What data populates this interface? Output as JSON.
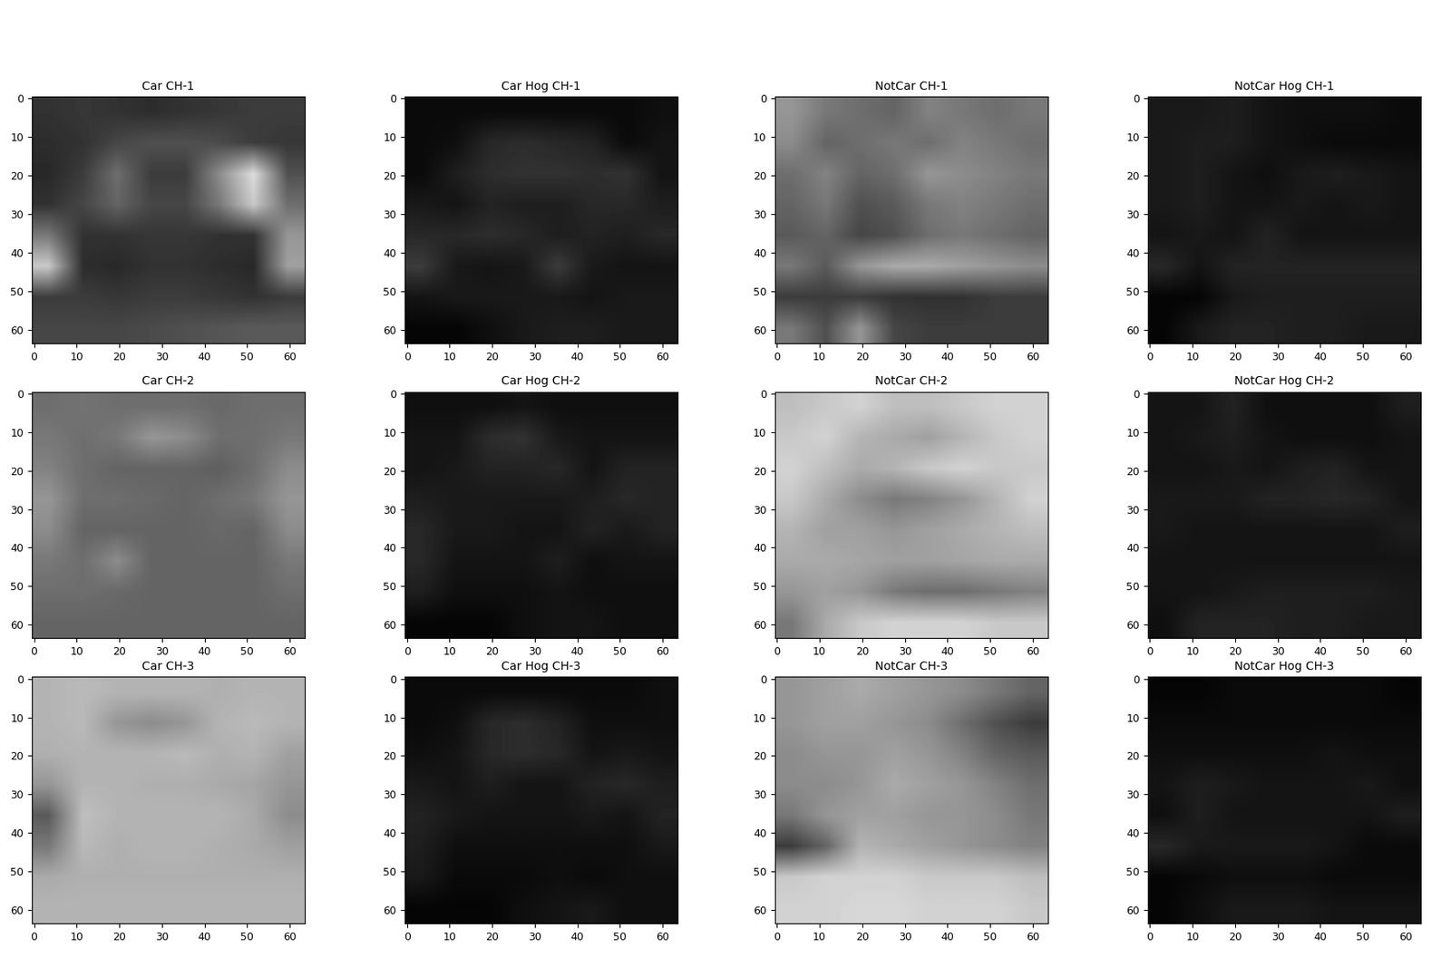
{
  "chart_data": [
    {
      "type": "image",
      "title": "Car CH-1",
      "xlim": [
        -0.5,
        63.5
      ],
      "ylim": [
        63.5,
        -0.5
      ],
      "xticks": [
        0,
        10,
        20,
        30,
        40,
        50,
        60
      ],
      "yticks": [
        0,
        10,
        20,
        30,
        40,
        50,
        60
      ],
      "color_range": [
        0,
        255
      ],
      "cells": [
        [
          50,
          55,
          50,
          45,
          50,
          55,
          60,
          60
        ],
        [
          45,
          50,
          70,
          80,
          80,
          75,
          60,
          55
        ],
        [
          40,
          60,
          110,
          60,
          60,
          140,
          220,
          80
        ],
        [
          50,
          70,
          100,
          70,
          70,
          120,
          200,
          110
        ],
        [
          120,
          50,
          50,
          55,
          55,
          50,
          50,
          150
        ],
        [
          200,
          45,
          40,
          50,
          50,
          45,
          40,
          160
        ],
        [
          60,
          60,
          55,
          60,
          60,
          55,
          50,
          60
        ],
        [
          70,
          70,
          70,
          75,
          80,
          85,
          90,
          90
        ]
      ]
    },
    {
      "type": "image",
      "title": "Car Hog CH-1",
      "xlim": [
        -0.5,
        63.5
      ],
      "ylim": [
        63.5,
        -0.5
      ],
      "xticks": [
        0,
        10,
        20,
        30,
        40,
        50,
        60
      ],
      "yticks": [
        0,
        10,
        20,
        30,
        40,
        50,
        60
      ],
      "color_range": [
        0,
        255
      ],
      "cells": [
        [
          10,
          10,
          10,
          10,
          10,
          10,
          10,
          15
        ],
        [
          10,
          15,
          40,
          45,
          40,
          35,
          10,
          20
        ],
        [
          10,
          30,
          45,
          50,
          50,
          45,
          50,
          20
        ],
        [
          25,
          20,
          35,
          30,
          30,
          40,
          40,
          30
        ],
        [
          40,
          40,
          45,
          40,
          30,
          35,
          30,
          40
        ],
        [
          60,
          25,
          20,
          25,
          60,
          25,
          20,
          20
        ],
        [
          20,
          25,
          25,
          25,
          25,
          20,
          25,
          25
        ],
        [
          5,
          5,
          15,
          25,
          30,
          30,
          25,
          25
        ]
      ]
    },
    {
      "type": "image",
      "title": "NotCar CH-1",
      "xlim": [
        -0.5,
        63.5
      ],
      "ylim": [
        63.5,
        -0.5
      ],
      "xticks": [
        0,
        10,
        20,
        30,
        40,
        50,
        60
      ],
      "yticks": [
        0,
        10,
        20,
        30,
        40,
        50,
        60
      ],
      "color_range": [
        0,
        255
      ],
      "cells": [
        [
          150,
          120,
          110,
          100,
          130,
          120,
          110,
          120
        ],
        [
          140,
          100,
          110,
          120,
          110,
          130,
          120,
          110
        ],
        [
          110,
          130,
          100,
          110,
          150,
          140,
          130,
          120
        ],
        [
          100,
          120,
          80,
          90,
          120,
          130,
          120,
          110
        ],
        [
          90,
          100,
          70,
          80,
          110,
          120,
          110,
          100
        ],
        [
          120,
          90,
          150,
          170,
          170,
          160,
          150,
          140
        ],
        [
          60,
          60,
          60,
          50,
          50,
          50,
          60,
          60
        ],
        [
          120,
          80,
          150,
          70,
          60,
          60,
          60,
          60
        ]
      ]
    },
    {
      "type": "image",
      "title": "NotCar Hog CH-1",
      "xlim": [
        -0.5,
        63.5
      ],
      "ylim": [
        63.5,
        -0.5
      ],
      "xticks": [
        0,
        10,
        20,
        30,
        40,
        50,
        60
      ],
      "yticks": [
        0,
        10,
        20,
        30,
        40,
        50,
        60
      ],
      "color_range": [
        0,
        255
      ],
      "cells": [
        [
          25,
          25,
          30,
          20,
          15,
          15,
          15,
          10
        ],
        [
          25,
          30,
          30,
          20,
          15,
          10,
          10,
          10
        ],
        [
          25,
          30,
          20,
          15,
          25,
          30,
          25,
          20
        ],
        [
          25,
          30,
          20,
          20,
          25,
          20,
          25,
          20
        ],
        [
          20,
          25,
          20,
          35,
          20,
          20,
          20,
          20
        ],
        [
          40,
          20,
          35,
          35,
          35,
          35,
          35,
          35
        ],
        [
          5,
          5,
          25,
          30,
          30,
          30,
          30,
          30
        ],
        [
          5,
          25,
          35,
          35,
          30,
          30,
          25,
          25
        ]
      ]
    },
    {
      "type": "image",
      "title": "Car CH-2",
      "xlim": [
        -0.5,
        63.5
      ],
      "ylim": [
        63.5,
        -0.5
      ],
      "xticks": [
        0,
        10,
        20,
        30,
        40,
        50,
        60
      ],
      "yticks": [
        0,
        10,
        20,
        30,
        40,
        50,
        60
      ],
      "color_range": [
        0,
        255
      ],
      "cells": [
        [
          110,
          115,
          110,
          110,
          110,
          105,
          110,
          110
        ],
        [
          120,
          110,
          120,
          150,
          140,
          110,
          110,
          120
        ],
        [
          130,
          110,
          100,
          100,
          100,
          95,
          110,
          140
        ],
        [
          150,
          110,
          110,
          105,
          100,
          110,
          120,
          150
        ],
        [
          140,
          100,
          100,
          100,
          100,
          105,
          100,
          140
        ],
        [
          120,
          110,
          140,
          100,
          100,
          100,
          100,
          120
        ],
        [
          110,
          110,
          105,
          100,
          100,
          100,
          100,
          110
        ],
        [
          100,
          100,
          100,
          100,
          100,
          100,
          100,
          100
        ]
      ]
    },
    {
      "type": "image",
      "title": "Car Hog CH-2",
      "xlim": [
        -0.5,
        63.5
      ],
      "ylim": [
        63.5,
        -0.5
      ],
      "xticks": [
        0,
        10,
        20,
        30,
        40,
        50,
        60
      ],
      "yticks": [
        0,
        10,
        20,
        30,
        40,
        50,
        60
      ],
      "color_range": [
        0,
        255
      ],
      "cells": [
        [
          15,
          15,
          15,
          20,
          15,
          15,
          15,
          15
        ],
        [
          20,
          20,
          45,
          50,
          25,
          20,
          20,
          20
        ],
        [
          20,
          25,
          35,
          35,
          40,
          20,
          35,
          35
        ],
        [
          30,
          25,
          25,
          25,
          25,
          30,
          40,
          35
        ],
        [
          40,
          25,
          25,
          20,
          20,
          35,
          25,
          35
        ],
        [
          40,
          20,
          20,
          20,
          30,
          15,
          20,
          20
        ],
        [
          30,
          15,
          15,
          15,
          20,
          15,
          15,
          15
        ],
        [
          5,
          5,
          5,
          15,
          20,
          20,
          15,
          15
        ]
      ]
    },
    {
      "type": "image",
      "title": "NotCar CH-2",
      "xlim": [
        -0.5,
        63.5
      ],
      "ylim": [
        63.5,
        -0.5
      ],
      "xticks": [
        0,
        10,
        20,
        30,
        40,
        50,
        60
      ],
      "yticks": [
        0,
        10,
        20,
        30,
        40,
        50,
        60
      ],
      "color_range": [
        0,
        255
      ],
      "cells": [
        [
          190,
          200,
          210,
          190,
          190,
          200,
          210,
          210
        ],
        [
          200,
          210,
          180,
          170,
          160,
          180,
          200,
          210
        ],
        [
          210,
          190,
          170,
          180,
          200,
          210,
          200,
          200
        ],
        [
          200,
          170,
          140,
          120,
          130,
          150,
          180,
          210
        ],
        [
          180,
          160,
          160,
          150,
          160,
          170,
          180,
          190
        ],
        [
          170,
          170,
          165,
          160,
          160,
          165,
          170,
          170
        ],
        [
          150,
          160,
          150,
          120,
          110,
          110,
          120,
          130
        ],
        [
          120,
          170,
          200,
          210,
          210,
          210,
          200,
          200
        ]
      ]
    },
    {
      "type": "image",
      "title": "NotCar Hog CH-2",
      "xlim": [
        -0.5,
        63.5
      ],
      "ylim": [
        63.5,
        -0.5
      ],
      "xticks": [
        0,
        10,
        20,
        30,
        40,
        50,
        60
      ],
      "yticks": [
        0,
        10,
        20,
        30,
        40,
        50,
        60
      ],
      "color_range": [
        0,
        255
      ],
      "cells": [
        [
          20,
          20,
          35,
          15,
          15,
          15,
          15,
          30
        ],
        [
          20,
          25,
          30,
          20,
          15,
          15,
          15,
          20
        ],
        [
          20,
          20,
          25,
          20,
          30,
          35,
          20,
          20
        ],
        [
          25,
          25,
          25,
          35,
          35,
          40,
          35,
          20
        ],
        [
          25,
          20,
          20,
          20,
          20,
          20,
          20,
          30
        ],
        [
          20,
          20,
          20,
          20,
          20,
          20,
          20,
          20
        ],
        [
          20,
          20,
          25,
          30,
          30,
          30,
          30,
          25
        ],
        [
          15,
          35,
          35,
          35,
          30,
          30,
          25,
          25
        ]
      ]
    },
    {
      "type": "image",
      "title": "Car CH-3",
      "xlim": [
        -0.5,
        63.5
      ],
      "ylim": [
        63.5,
        -0.5
      ],
      "xticks": [
        0,
        10,
        20,
        30,
        40,
        50,
        60
      ],
      "yticks": [
        0,
        10,
        20,
        30,
        40,
        50,
        60
      ],
      "color_range": [
        0,
        255
      ],
      "cells": [
        [
          180,
          185,
          180,
          180,
          180,
          175,
          180,
          180
        ],
        [
          180,
          185,
          150,
          140,
          150,
          180,
          185,
          180
        ],
        [
          175,
          180,
          180,
          180,
          185,
          175,
          180,
          160
        ],
        [
          150,
          180,
          180,
          175,
          175,
          170,
          165,
          150
        ],
        [
          90,
          190,
          180,
          180,
          180,
          180,
          170,
          140
        ],
        [
          120,
          185,
          175,
          180,
          180,
          175,
          170,
          160
        ],
        [
          170,
          175,
          175,
          175,
          175,
          175,
          175,
          175
        ],
        [
          180,
          180,
          180,
          180,
          180,
          180,
          180,
          180
        ]
      ]
    },
    {
      "type": "image",
      "title": "Car Hog CH-3",
      "xlim": [
        -0.5,
        63.5
      ],
      "ylim": [
        63.5,
        -0.5
      ],
      "xticks": [
        0,
        10,
        20,
        30,
        40,
        50,
        60
      ],
      "yticks": [
        0,
        10,
        20,
        30,
        40,
        50,
        60
      ],
      "color_range": [
        0,
        255
      ],
      "cells": [
        [
          10,
          10,
          10,
          10,
          10,
          10,
          10,
          15
        ],
        [
          10,
          15,
          40,
          45,
          35,
          15,
          15,
          15
        ],
        [
          15,
          20,
          40,
          45,
          40,
          20,
          25,
          20
        ],
        [
          25,
          20,
          30,
          20,
          20,
          35,
          40,
          30
        ],
        [
          35,
          25,
          20,
          20,
          20,
          25,
          20,
          35
        ],
        [
          30,
          15,
          15,
          15,
          15,
          15,
          15,
          25
        ],
        [
          25,
          10,
          10,
          10,
          15,
          10,
          15,
          15
        ],
        [
          5,
          5,
          5,
          15,
          20,
          25,
          15,
          15
        ]
      ]
    },
    {
      "type": "image",
      "title": "NotCar CH-3",
      "xlim": [
        -0.5,
        63.5
      ],
      "ylim": [
        63.5,
        -0.5
      ],
      "xticks": [
        0,
        10,
        20,
        30,
        40,
        50,
        60
      ],
      "yticks": [
        0,
        10,
        20,
        30,
        40,
        50,
        60
      ],
      "color_range": [
        0,
        255
      ],
      "cells": [
        [
          150,
          160,
          170,
          160,
          150,
          140,
          120,
          100
        ],
        [
          150,
          160,
          160,
          150,
          140,
          110,
          80,
          60
        ],
        [
          140,
          150,
          150,
          160,
          150,
          130,
          100,
          90
        ],
        [
          140,
          140,
          150,
          170,
          160,
          150,
          130,
          110
        ],
        [
          120,
          150,
          160,
          160,
          150,
          150,
          140,
          120
        ],
        [
          60,
          100,
          180,
          170,
          160,
          150,
          140,
          130
        ],
        [
          200,
          210,
          210,
          210,
          200,
          200,
          200,
          190
        ],
        [
          210,
          210,
          215,
          215,
          210,
          210,
          210,
          200
        ]
      ]
    },
    {
      "type": "image",
      "title": "NotCar Hog CH-3",
      "xlim": [
        -0.5,
        63.5
      ],
      "ylim": [
        63.5,
        -0.5
      ],
      "xticks": [
        0,
        10,
        20,
        30,
        40,
        50,
        60
      ],
      "yticks": [
        0,
        10,
        20,
        30,
        40,
        50,
        60
      ],
      "color_range": [
        0,
        255
      ],
      "cells": [
        [
          5,
          5,
          10,
          10,
          10,
          10,
          10,
          5
        ],
        [
          10,
          10,
          10,
          10,
          10,
          10,
          10,
          10
        ],
        [
          15,
          15,
          15,
          15,
          15,
          20,
          15,
          15
        ],
        [
          20,
          30,
          25,
          20,
          20,
          20,
          25,
          15
        ],
        [
          15,
          30,
          20,
          20,
          20,
          20,
          20,
          30
        ],
        [
          40,
          25,
          25,
          25,
          25,
          20,
          10,
          10
        ],
        [
          5,
          10,
          15,
          15,
          15,
          10,
          10,
          10
        ],
        [
          5,
          15,
          25,
          25,
          25,
          20,
          20,
          20
        ]
      ]
    }
  ]
}
